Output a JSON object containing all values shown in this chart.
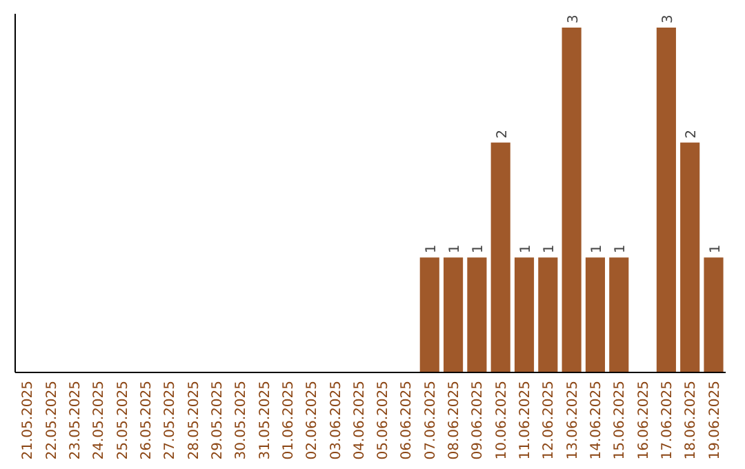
{
  "chart_data": {
    "type": "bar",
    "categories": [
      "21.05.2025",
      "22.05.2025",
      "23.05.2025",
      "24.05.2025",
      "25.05.2025",
      "26.05.2025",
      "27.05.2025",
      "28.05.2025",
      "29.05.2025",
      "30.05.2025",
      "31.05.2025",
      "01.06.2025",
      "02.06.2025",
      "03.06.2025",
      "04.06.2025",
      "05.06.2025",
      "06.06.2025",
      "07.06.2025",
      "08.06.2025",
      "09.06.2025",
      "10.06.2025",
      "11.06.2025",
      "12.06.2025",
      "13.06.2025",
      "14.06.2025",
      "15.06.2025",
      "16.06.2025",
      "17.06.2025",
      "18.06.2025",
      "19.06.2025"
    ],
    "values": [
      null,
      null,
      null,
      null,
      null,
      null,
      null,
      null,
      null,
      null,
      null,
      null,
      null,
      null,
      null,
      null,
      null,
      1,
      1,
      1,
      2,
      1,
      1,
      3,
      1,
      1,
      null,
      3,
      2,
      1
    ],
    "data_labels": true,
    "color": "#a0592a"
  }
}
